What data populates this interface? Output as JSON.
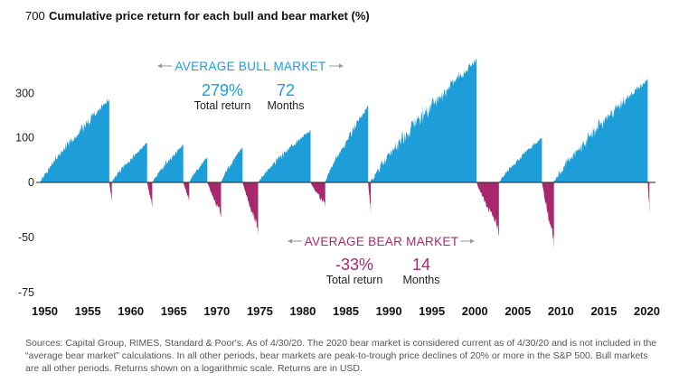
{
  "chart_data": {
    "type": "area",
    "title": "Cumulative price return for each bull and bear market (%)",
    "y_scale": "log",
    "yticks": [
      "700",
      "300",
      "100",
      "0",
      "-50",
      "-75"
    ],
    "xticks": [
      "1950",
      "1955",
      "1960",
      "1965",
      "1970",
      "1975",
      "1980",
      "1985",
      "1990",
      "1995",
      "2000",
      "2005",
      "2010",
      "2015",
      "2020"
    ],
    "xlim": [
      1949,
      2021
    ],
    "colors": {
      "bull": "#1d9ed8",
      "bear": "#a8286d"
    },
    "bull_markets": [
      {
        "start": 1949.5,
        "end": 1957.5,
        "peak_return": 267
      },
      {
        "start": 1957.8,
        "end": 1961.9,
        "peak_return": 86
      },
      {
        "start": 1962.5,
        "end": 1966.1,
        "peak_return": 80
      },
      {
        "start": 1966.8,
        "end": 1968.9,
        "peak_return": 48
      },
      {
        "start": 1970.5,
        "end": 1973.0,
        "peak_return": 74
      },
      {
        "start": 1974.8,
        "end": 1980.9,
        "peak_return": 126
      },
      {
        "start": 1982.6,
        "end": 1987.6,
        "peak_return": 229
      },
      {
        "start": 1987.9,
        "end": 2000.2,
        "peak_return": 582
      },
      {
        "start": 2002.8,
        "end": 2007.8,
        "peak_return": 101
      },
      {
        "start": 2009.2,
        "end": 2020.1,
        "peak_return": 400
      }
    ],
    "bear_markets": [
      {
        "start": 1957.5,
        "end": 1957.8,
        "trough_return": -21
      },
      {
        "start": 1961.9,
        "end": 1962.5,
        "trough_return": -28
      },
      {
        "start": 1966.1,
        "end": 1966.8,
        "trough_return": -22
      },
      {
        "start": 1968.9,
        "end": 1970.5,
        "trough_return": -36
      },
      {
        "start": 1973.0,
        "end": 1974.8,
        "trough_return": -48
      },
      {
        "start": 1980.9,
        "end": 1982.6,
        "trough_return": -27
      },
      {
        "start": 1987.6,
        "end": 1987.9,
        "trough_return": -34
      },
      {
        "start": 2000.2,
        "end": 2002.8,
        "trough_return": -49
      },
      {
        "start": 2007.8,
        "end": 2009.2,
        "trough_return": -57
      },
      {
        "start": 2020.1,
        "end": 2020.3,
        "trough_return": -34
      }
    ],
    "annotations": {
      "bull": {
        "heading": "AVERAGE BULL MARKET",
        "return_value": "279%",
        "return_label": "Total return",
        "months_value": "72",
        "months_label": "Months"
      },
      "bear": {
        "heading": "AVERAGE BEAR MARKET",
        "return_value": "-33%",
        "return_label": "Total return",
        "months_value": "14",
        "months_label": "Months"
      }
    },
    "source": "Sources: Capital Group, RIMES, Standard & Poor's. As of 4/30/20. The 2020 bear market is considered current as of 4/30/20 and is not included in the “average bear market” calculations. In all other periods, bear markets are peak-to-trough price declines of 20% or more in the S&P 500. Bull markets are all other periods. Returns shown on a logarithmic scale. Returns are in USD."
  }
}
